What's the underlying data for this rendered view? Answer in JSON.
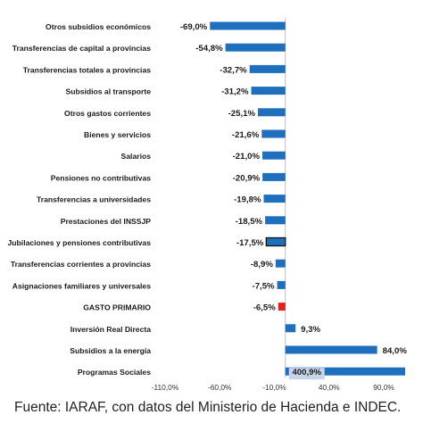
{
  "chart_data": {
    "type": "bar",
    "orientation": "horizontal",
    "categories": [
      "Otros subsidios económicos",
      "Transferencias de capital a provincias",
      "Transferencias totales a provincias",
      "Subsidios al transporte",
      "Otros gastos corrientes",
      "Bienes y servicios",
      "Salarios",
      "Pensiones no contributivas",
      "Transferencias a universidades",
      "Prestaciones del INSSJP",
      "Jubilaciones y pensiones contributivas",
      "Transferencias corrientes a provincias",
      "Asignaciones familiares y universales",
      "GASTO PRIMARIO",
      "Inversión Real Directa",
      "Subsidios a la energía",
      "Programas Sociales"
    ],
    "values": [
      -69.0,
      -54.8,
      -32.7,
      -31.2,
      -25.1,
      -21.6,
      -21.0,
      -20.9,
      -19.8,
      -18.5,
      -17.5,
      -8.9,
      -7.5,
      -6.5,
      9.3,
      84.0,
      400.9
    ],
    "data_labels": [
      "-69,0%",
      "-54,8%",
      "-32,7%",
      "-31,2%",
      "-25,1%",
      "-21,6%",
      "-21,0%",
      "-20,9%",
      "-19,8%",
      "-18,5%",
      "-17,5%",
      "-8,9%",
      "-7,5%",
      "-6,5%",
      "9,3%",
      "84,0%",
      "400,9%"
    ],
    "xlim": [
      -110,
      90
    ],
    "x_ticks": [
      -110,
      -60,
      -10,
      40,
      90
    ],
    "x_tick_labels": [
      "-110,0%",
      "-60,0%",
      "-10,0%",
      "40,0%",
      "90,0%"
    ],
    "bar_colors": {
      "default": "#1f6fbf",
      "highlight": "#e3211c",
      "outlined_fill": "#1f6fbf",
      "outlined_stroke": "#111111",
      "label_badge": "#c8d4ea"
    },
    "highlight_category": "GASTO PRIMARIO",
    "outlined_category": "Jubilaciones y pensiones contributivas",
    "grid": false
  },
  "source": "Fuente: IARAF, con datos del Ministerio de Hacienda e INDEC."
}
